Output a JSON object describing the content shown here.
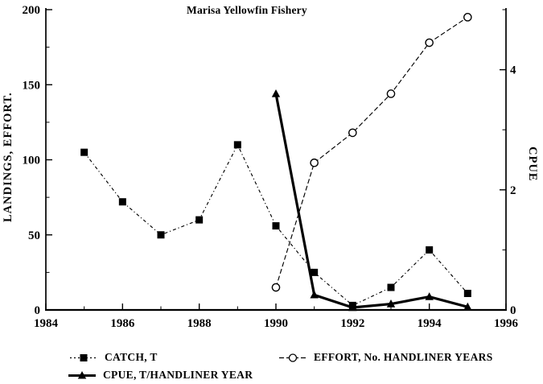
{
  "chart_data": {
    "type": "line",
    "title": "Marisa Yellowfin Fishery",
    "grid": false,
    "legend_position": "bottom",
    "x_axis": {
      "range": [
        1984,
        1996
      ],
      "ticks": [
        1984,
        1986,
        1988,
        1990,
        1992,
        1994,
        1996
      ],
      "minor_ticks": [
        1985,
        1987,
        1989,
        1991,
        1993,
        1995
      ]
    },
    "left_axis": {
      "label": "LANDINGS, EFFORT.",
      "range": [
        0,
        200
      ],
      "ticks": [
        0,
        50,
        100,
        150,
        200
      ],
      "minor_ticks": [
        25,
        75,
        125,
        175
      ]
    },
    "right_axis": {
      "label": "CPUE",
      "range": [
        0,
        5
      ],
      "ticks": [
        0,
        2,
        4
      ],
      "minor_ticks": [
        1,
        3,
        5
      ]
    },
    "series": [
      {
        "name": "CATCH, T",
        "axis": "left",
        "marker": "square",
        "line": "dashdot",
        "x": [
          1985,
          1986,
          1987,
          1988,
          1989,
          1990,
          1991,
          1992,
          1993,
          1994,
          1995
        ],
        "values": [
          105,
          72,
          50,
          60,
          110,
          56,
          25,
          3,
          15,
          40,
          11
        ]
      },
      {
        "name": "EFFORT, No. HANDLINER YEARS",
        "axis": "left",
        "marker": "circle-open",
        "line": "dashed",
        "x": [
          1990,
          1991,
          1992,
          1993,
          1994,
          1995
        ],
        "values": [
          15,
          98,
          118,
          144,
          178,
          195
        ]
      },
      {
        "name": "CPUE, T/HANDLINER YEAR",
        "axis": "right",
        "marker": "triangle",
        "line": "solid",
        "x": [
          1990,
          1991,
          1992,
          1993,
          1994,
          1995
        ],
        "values": [
          3.6,
          0.25,
          0.04,
          0.1,
          0.22,
          0.05
        ]
      }
    ]
  }
}
